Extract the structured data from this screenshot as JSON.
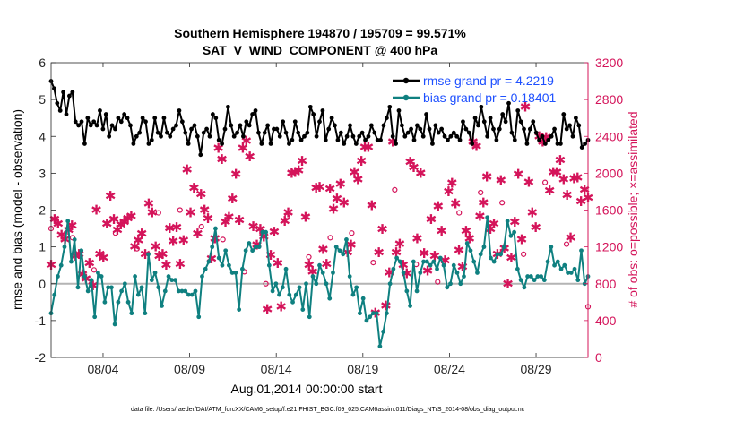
{
  "chart_data": {
    "type": "line",
    "title_line1": "Southern Hemisphere 194870 / 195709 = 99.571%",
    "title_line2": "SAT_V_WIND_COMPONENT @ 400 hPa",
    "xlabel": "Aug.01,2014 00:00:00 start",
    "ylabel_left": "rmse and bias (model - observation)",
    "ylabel_right": "# of obs: o=possible; ×=assimilated",
    "footnote": "data file: /Users/raeder/DAI/ATM_forcXX/CAM6_setup/f.e21.FHIST_BGC.f09_025.CAM6assim.011/Diags_NTrS_2014-08/obs_diag_output.nc",
    "xlim": [
      0,
      62
    ],
    "ylim_left": [
      -2,
      6
    ],
    "ylim_right": [
      0,
      3200
    ],
    "x_tick_positions": [
      6,
      16,
      26,
      36,
      46,
      56
    ],
    "x_tick_labels": [
      "08/04",
      "08/09",
      "08/14",
      "08/19",
      "08/24",
      "08/29"
    ],
    "y_left_ticks": [
      -2,
      -1,
      0,
      1,
      2,
      3,
      4,
      5,
      6
    ],
    "y_right_ticks": [
      0,
      400,
      800,
      1200,
      1600,
      2000,
      2400,
      2800,
      3200
    ],
    "colors": {
      "rmse": "#000000",
      "bias": "#0f8080",
      "obs": "#d4145a",
      "zero": "#b4b4b4"
    },
    "legend_entries": [
      "rmse grand pr = 4.2219",
      "bias grand pr = 0.18401"
    ],
    "series": [
      {
        "name": "rmse",
        "values": [
          5.5,
          5.3,
          4.9,
          4.7,
          5.2,
          4.6,
          5.1,
          5.2,
          4.4,
          4.3,
          4.4,
          3.8,
          4.5,
          4.3,
          4.4,
          4.3,
          4.7,
          4.2,
          4.6,
          4.0,
          4.3,
          4.2,
          4.5,
          4.4,
          4.6,
          4.5,
          4.3,
          3.8,
          4.0,
          4.1,
          4.5,
          4.4,
          3.8,
          3.9,
          4.5,
          4.1,
          4.0,
          4.5,
          4.1,
          4.0,
          4.2,
          4.3,
          4.7,
          4.4,
          4.1,
          3.8,
          4.2,
          4.3,
          4.0,
          3.5,
          4.1,
          4.2,
          4.0,
          4.6,
          4.5,
          3.9,
          3.8,
          4.2,
          4.8,
          4.3,
          4.0,
          4.1,
          4.3,
          4.0,
          4.4,
          4.3,
          4.6,
          4.7,
          4.1,
          3.8,
          4.1,
          4.3,
          3.8,
          4.2,
          4.2,
          4.0,
          4.4,
          4.1,
          3.8,
          3.9,
          4.4,
          4.1,
          3.9,
          4.0,
          4.1,
          4.8,
          4.6,
          4.0,
          4.4,
          4.7,
          3.9,
          4.2,
          4.5,
          4.3,
          3.9,
          4.1,
          3.8,
          4.0,
          4.3,
          4.0,
          3.8,
          4.0,
          4.1,
          3.9,
          4.0,
          4.3,
          4.1,
          3.9,
          3.9,
          4.3,
          4.5,
          4.8,
          4.0,
          3.8,
          4.7,
          4.3,
          4.0,
          4.1,
          4.2,
          3.9,
          4.3,
          4.2,
          4.0,
          4.6,
          4.2,
          3.8,
          4.3,
          4.1,
          4.2,
          4.0,
          3.9,
          4.0,
          4.1,
          4.0,
          3.9,
          4.4,
          4.2,
          4.1,
          3.8,
          4.5,
          4.3,
          4.8,
          4.4,
          4.0,
          4.5,
          4.2,
          3.9,
          4.2,
          4.6,
          4.4,
          4.9,
          4.1,
          3.9,
          4.7,
          4.4,
          4.2,
          3.8,
          4.2,
          4.4,
          4.1,
          3.9,
          4.0,
          3.8,
          3.9,
          4.0,
          4.2,
          3.8,
          3.8,
          4.6,
          4.2,
          4.3,
          4.0,
          4.5,
          4.3,
          3.7,
          3.8,
          3.9
        ]
      },
      {
        "name": "bias",
        "values": [
          -0.8,
          -0.3,
          0.2,
          0.5,
          1.0,
          1.7,
          0.6,
          1.2,
          -0.1,
          0.9,
          0.2,
          -0.2,
          0.1,
          -0.9,
          0.3,
          0.2,
          -0.5,
          -0.1,
          -0.1,
          -1.1,
          -0.5,
          -0.2,
          0.0,
          -0.5,
          -0.8,
          0.2,
          -0.3,
          -0.1,
          -0.8,
          0.8,
          0.1,
          0.3,
          -0.1,
          -0.6,
          -0.2,
          0.2,
          0.1,
          0.1,
          -0.2,
          -0.2,
          -0.2,
          -0.3,
          -0.3,
          -0.2,
          -0.9,
          0.2,
          0.4,
          0.6,
          1.0,
          1.5,
          0.7,
          0.5,
          0.9,
          0.5,
          0.3,
          0.3,
          -0.7,
          0.4,
          0.9,
          1.1,
          0.9,
          1.0,
          1.0,
          1.4,
          1.4,
          0.5,
          -0.2,
          0.0,
          -0.3,
          -0.1,
          0.4,
          -0.3,
          -0.5,
          -0.3,
          -0.1,
          -0.7,
          0.0,
          -0.9,
          0.2,
          0.0,
          0.5,
          0.3,
          0.0,
          -0.4,
          0.3,
          1.0,
          0.9,
          0.8,
          1.2,
          0.2,
          -0.3,
          -0.1,
          -0.8,
          -0.4,
          -1.0,
          -0.9,
          -0.8,
          -0.8,
          -1.7,
          -1.3,
          -0.8,
          0.0,
          0.4,
          0.7,
          0.6,
          0.3,
          -0.2,
          -0.6,
          0.6,
          -0.2,
          0.3,
          0.6,
          0.6,
          0.5,
          0.6,
          0.4,
          0.7,
          0.5,
          -0.1,
          0.0,
          0.5,
          0.3,
          0.0,
          0.2,
          1.1,
          0.9,
          0.6,
          0.3,
          0.8,
          1.0,
          1.8,
          0.7,
          0.6,
          0.8,
          0.8,
          1.0,
          1.7,
          1.3,
          1.4,
          0.4,
          0.1,
          -0.1,
          0.2,
          0.2,
          0.1,
          0.2,
          0.2,
          0.1,
          0.6,
          1.0,
          0.5,
          0.6,
          0.4,
          0.5,
          0.3,
          0.3,
          0.4,
          0.1,
          0.9,
          0.0,
          0.2
        ]
      },
      {
        "name": "obs_assimilated",
        "values": [
          1000,
          1500,
          1450,
          1330,
          1280,
          1380,
          1430,
          1100,
          1120,
          900,
          850,
          1020,
          780,
          1600,
          1120,
          1080,
          1450,
          1750,
          1500,
          1380,
          1440,
          1470,
          1510,
          1530,
          1200,
          1270,
          1340,
          1120,
          1670,
          1570,
          1200,
          1100,
          1120,
          1000,
          1400,
          1260,
          1410,
          1010,
          1270,
          2040,
          1570,
          1840,
          1340,
          1770,
          1600,
          1510,
          1070,
          1290,
          2270,
          2150,
          1470,
          1520,
          1720,
          1990,
          1490,
          2270,
          2350,
          2180,
          1420,
          1220,
          1390,
          1310,
          520,
          1110,
          1360,
          1020,
          550,
          1480,
          1570,
          2000,
          2010,
          2030,
          2130,
          1520,
          1000,
          930,
          1840,
          1850,
          1170,
          1010,
          1830,
          1610,
          1720,
          1880,
          1680,
          1140,
          1220,
          2010,
          1930,
          2130,
          2280,
          2280,
          1650,
          480,
          1140,
          1390,
          560,
          920,
          2340,
          1140,
          1230,
          1000,
          910,
          2120,
          2060,
          1290,
          2000,
          1130,
          940,
          1500,
          1100,
          1640,
          1370,
          1050,
          1800,
          1890,
          1670,
          1160,
          980,
          1370,
          1290,
          2340,
          2290,
          1530,
          1680,
          1960,
          1390,
          1450,
          1120,
          1920,
          1180,
          800,
          1080,
          1470,
          1990,
          1280,
          2720,
          1900,
          1570,
          1410,
          2400,
          2340,
          2390,
          1810,
          2010,
          2010,
          2140,
          1930,
          1760,
          1300,
          1940,
          1950,
          1690,
          1820,
          1730
        ]
      },
      {
        "name": "obs_possible",
        "values": [
          1400,
          1300,
          950,
          1350,
          1180,
          1570,
          1600,
          1420,
          1280,
          930,
          800,
          1530,
          1090,
          1300,
          1350,
          1030,
          1820,
          1010,
          820,
          1570,
          1790,
          1680,
          1120,
          1900,
          1230,
          550
        ]
      }
    ]
  }
}
